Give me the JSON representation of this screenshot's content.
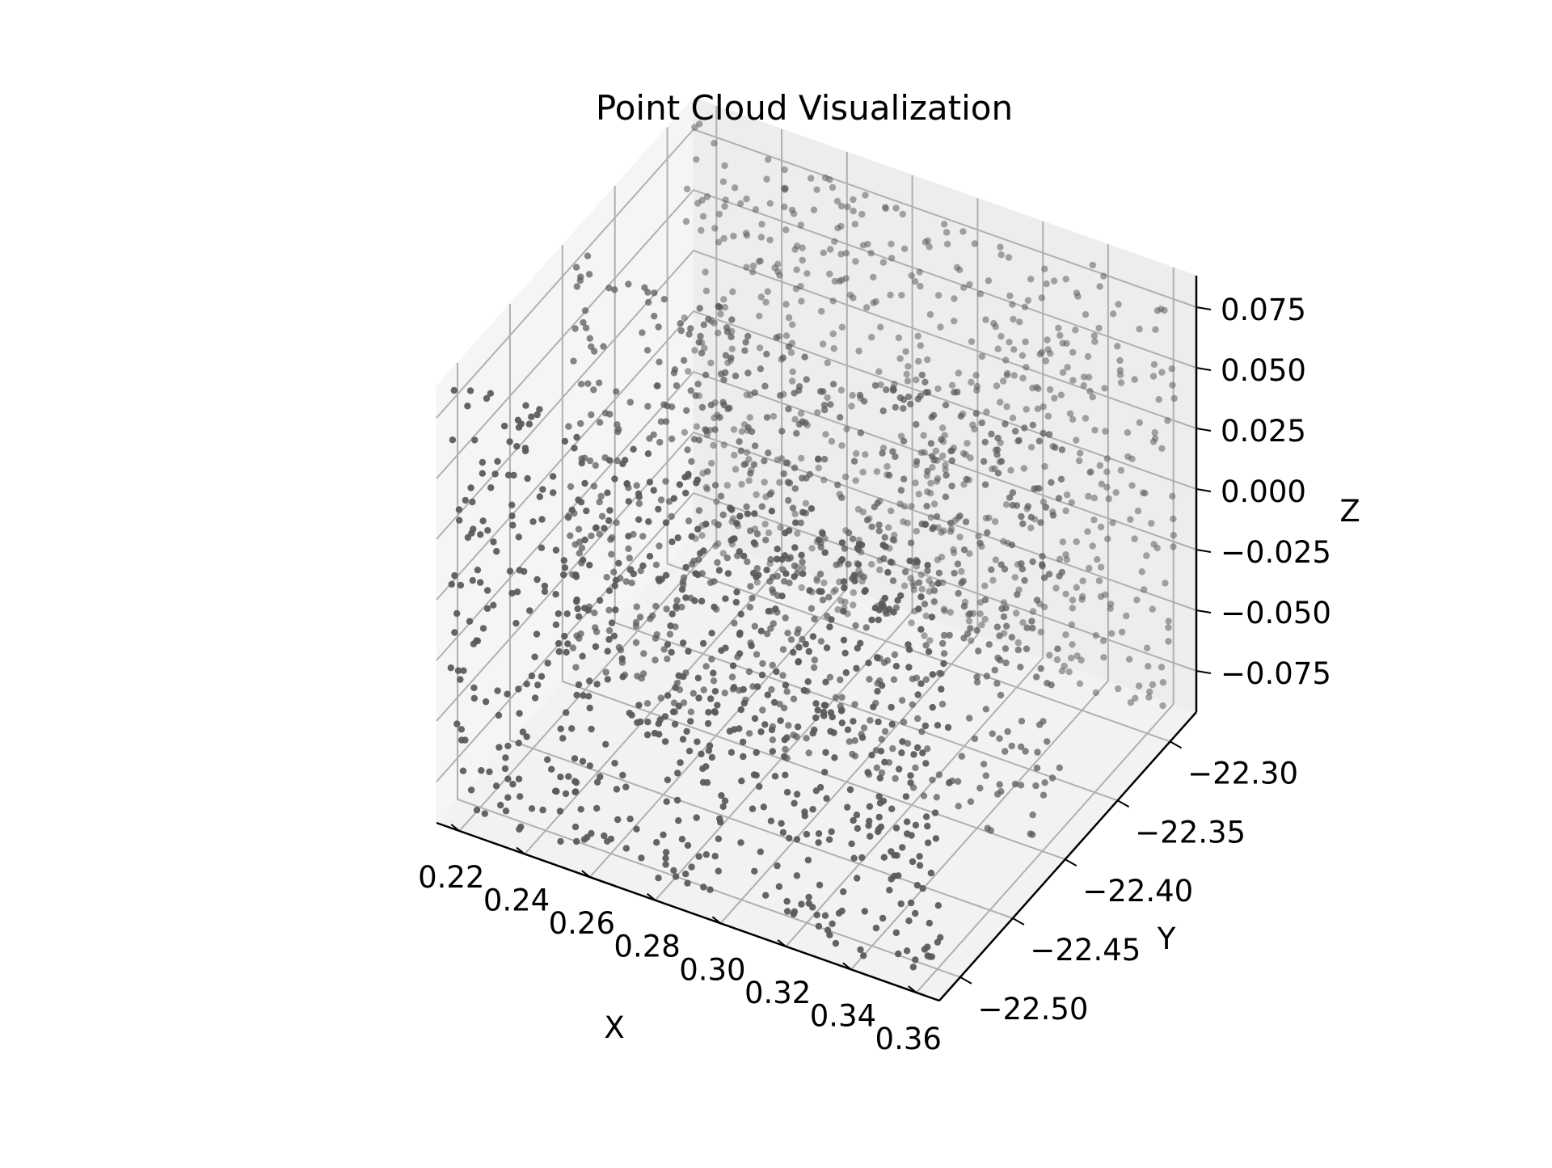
{
  "chart_data": {
    "type": "scatter",
    "projection": "3d",
    "title": "Point Cloud Visualization",
    "xlabel": "X",
    "ylabel": "Y",
    "zlabel": "Z",
    "xlim": [
      0.213,
      0.367
    ],
    "ylim": [
      -22.52,
      -22.275
    ],
    "zlim": [
      -0.092,
      0.088
    ],
    "x_ticks": [
      "0.22",
      "0.24",
      "0.26",
      "0.28",
      "0.30",
      "0.32",
      "0.34",
      "0.36"
    ],
    "y_ticks": [
      "−22.50",
      "−22.45",
      "−22.40",
      "−22.35",
      "−22.30"
    ],
    "z_ticks": [
      "−0.075",
      "−0.050",
      "−0.025",
      "0.000",
      "0.025",
      "0.050",
      "0.075"
    ],
    "point_color": "#595959",
    "grid": true,
    "structure": "three roughly planar sheets of points spread over the full X range, positioned near Y = -22.51, Y = -22.40 and Y = -22.29, each spanning the full Z range",
    "series": [
      {
        "count": 2000,
        "x_range": [
          0.215,
          0.365
        ],
        "y_sheets": [
          -22.51,
          -22.4,
          -22.29
        ],
        "z_range": [
          -0.09,
          0.085
        ],
        "sample_points": [
          [
            0.22,
            -22.51,
            0.06
          ],
          [
            0.25,
            -22.51,
            -0.07
          ],
          [
            0.3,
            -22.51,
            0.02
          ],
          [
            0.35,
            -22.51,
            -0.03
          ],
          [
            0.23,
            -22.4,
            0.04
          ],
          [
            0.28,
            -22.4,
            -0.05
          ],
          [
            0.33,
            -22.4,
            0.07
          ],
          [
            0.36,
            -22.4,
            -0.08
          ],
          [
            0.24,
            -22.29,
            0.08
          ],
          [
            0.29,
            -22.29,
            -0.02
          ],
          [
            0.32,
            -22.29,
            0.05
          ],
          [
            0.35,
            -22.29,
            -0.06
          ]
        ]
      }
    ]
  }
}
